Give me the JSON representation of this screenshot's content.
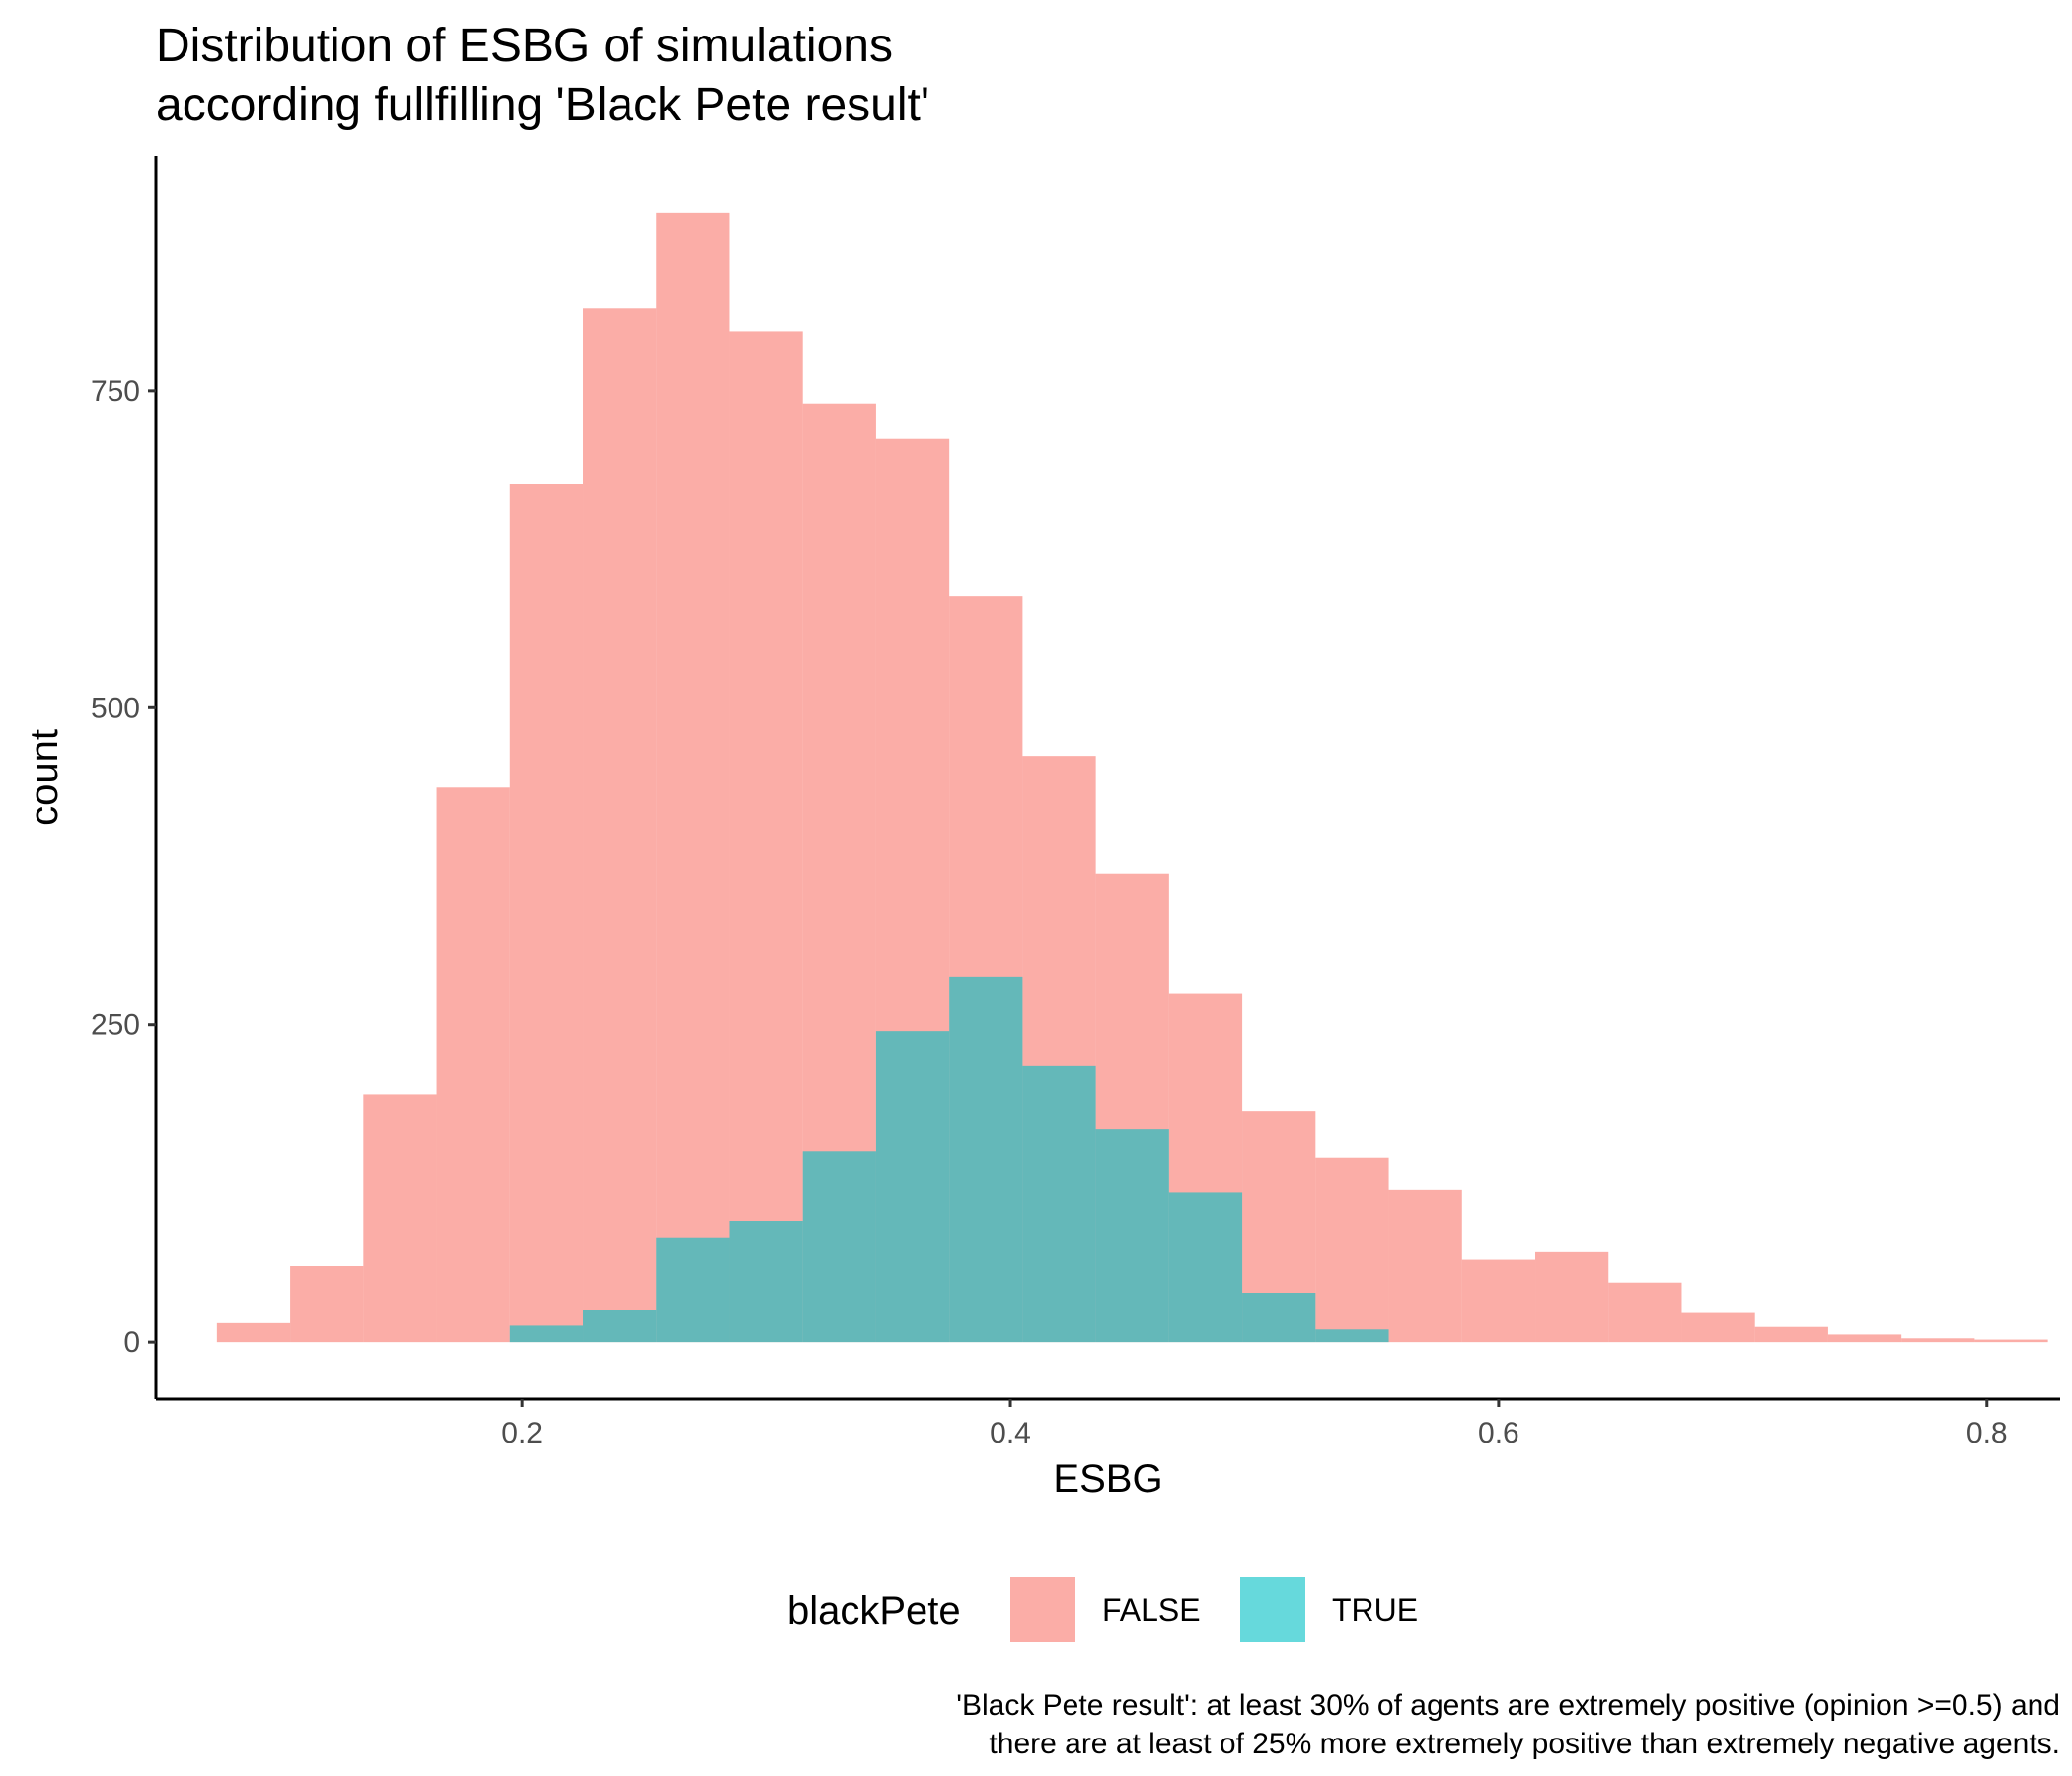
{
  "chart_data": {
    "type": "bar",
    "title_lines": [
      "Distribution of ESBG of simulations",
      "according fullfilling 'Black Pete result'"
    ],
    "xlabel": "ESBG",
    "ylabel": "count",
    "xlim": [
      0.05,
      0.83
    ],
    "ylim": [
      -45,
      935
    ],
    "xticks": [
      0.2,
      0.4,
      0.6,
      0.8
    ],
    "xtick_labels": [
      "0.2",
      "0.4",
      "0.6",
      "0.8"
    ],
    "yticks": [
      0,
      250,
      500,
      750
    ],
    "ytick_labels": [
      "0",
      "250",
      "500",
      "750"
    ],
    "grid": false,
    "legend_position": "bottom",
    "legend_title": "blackPete",
    "bin_width": 0.03,
    "bin_starts": [
      0.075,
      0.105,
      0.135,
      0.165,
      0.195,
      0.225,
      0.255,
      0.285,
      0.315,
      0.345,
      0.375,
      0.405,
      0.435,
      0.465,
      0.495,
      0.525,
      0.555,
      0.585,
      0.615,
      0.645,
      0.675,
      0.705,
      0.735,
      0.765,
      0.795
    ],
    "series": [
      {
        "name": "FALSE",
        "color": "#F8766D",
        "values": [
          15,
          60,
          195,
          437,
          676,
          815,
          890,
          797,
          740,
          712,
          588,
          462,
          369,
          275,
          182,
          145,
          120,
          65,
          71,
          47,
          23,
          12,
          6,
          3,
          2
        ]
      },
      {
        "name": "TRUE",
        "color": "#00BFC4",
        "values": [
          0,
          0,
          0,
          0,
          13,
          25,
          82,
          95,
          150,
          245,
          288,
          218,
          168,
          118,
          39,
          10,
          0,
          0,
          0,
          0,
          0,
          0,
          0,
          0,
          0
        ]
      }
    ],
    "bar_alpha": 0.6,
    "caption_lines": [
      "'Black Pete result': at least 30% of agents are extremely positive (opinion >=0.5) and",
      "there are at least of 25% more extremely positive than extremely negative agents."
    ]
  }
}
